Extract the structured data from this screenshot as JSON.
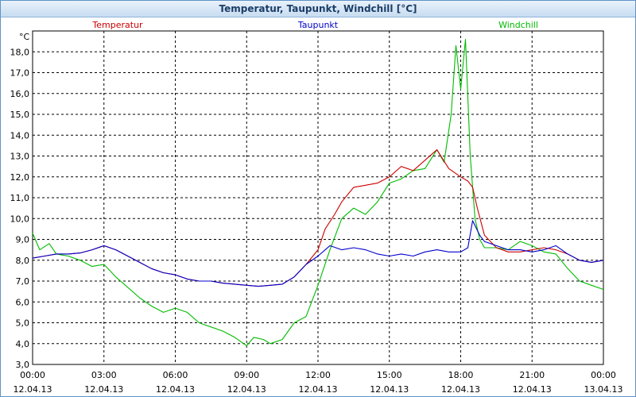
{
  "window": {
    "title": "Temperatur, Taupunkt, Windchill [°C]"
  },
  "chart_data": {
    "type": "line",
    "title": "Temperatur, Taupunkt, Windchill [°C]",
    "ylabel": "°C",
    "ylim": [
      3.0,
      19.0
    ],
    "y_ticks": [
      "3,0",
      "4,0",
      "5,0",
      "6,0",
      "7,0",
      "8,0",
      "9,0",
      "10,0",
      "11,0",
      "12,0",
      "13,0",
      "14,0",
      "15,0",
      "16,0",
      "17,0",
      "18,0"
    ],
    "x_ticks": [
      {
        "time": "00:00",
        "date": "12.04.13"
      },
      {
        "time": "03:00",
        "date": "12.04.13"
      },
      {
        "time": "06:00",
        "date": "12.04.13"
      },
      {
        "time": "09:00",
        "date": "12.04.13"
      },
      {
        "time": "12:00",
        "date": "12.04.13"
      },
      {
        "time": "15:00",
        "date": "12.04.13"
      },
      {
        "time": "18:00",
        "date": "12.04.13"
      },
      {
        "time": "21:00",
        "date": "12.04.13"
      },
      {
        "time": "00:00",
        "date": "13.04.13"
      }
    ],
    "xlim_hours": [
      0,
      24
    ],
    "grid": true,
    "legend_position": "top",
    "series": [
      {
        "name": "Temperatur",
        "color": "#cc0000",
        "x": [
          0,
          0.5,
          1,
          1.5,
          2,
          2.5,
          3,
          3.5,
          4,
          4.5,
          5,
          5.5,
          6,
          6.5,
          7,
          7.5,
          8,
          8.5,
          9,
          9.5,
          10,
          10.5,
          11,
          11.5,
          12,
          12.3,
          12.7,
          13,
          13.5,
          14,
          14.5,
          15,
          15.5,
          16,
          16.5,
          17,
          17.5,
          18,
          18.3,
          18.5,
          18.7,
          19,
          19.5,
          20,
          20.5,
          21,
          21.5,
          22,
          22.5,
          23,
          23.5,
          24
        ],
        "y": [
          8.1,
          8.2,
          8.3,
          8.3,
          8.35,
          8.5,
          8.7,
          8.5,
          8.2,
          7.9,
          7.6,
          7.4,
          7.3,
          7.1,
          7.0,
          7.0,
          6.9,
          6.85,
          6.8,
          6.75,
          6.8,
          6.85,
          7.2,
          7.8,
          8.5,
          9.5,
          10.2,
          10.8,
          11.5,
          11.6,
          11.7,
          12.0,
          12.5,
          12.3,
          12.8,
          13.3,
          12.4,
          12.0,
          11.8,
          11.5,
          10.5,
          9.2,
          8.6,
          8.4,
          8.4,
          8.5,
          8.6,
          8.5,
          8.3,
          8.0,
          7.9,
          8.0
        ]
      },
      {
        "name": "Taupunkt",
        "color": "#0000cc",
        "x": [
          0,
          0.5,
          1,
          1.5,
          2,
          2.5,
          3,
          3.5,
          4,
          4.5,
          5,
          5.5,
          6,
          6.5,
          7,
          7.5,
          8,
          8.5,
          9,
          9.5,
          10,
          10.5,
          11,
          11.5,
          12,
          12.5,
          13,
          13.5,
          14,
          14.5,
          15,
          15.5,
          16,
          16.5,
          17,
          17.5,
          18,
          18.3,
          18.5,
          18.8,
          19,
          19.5,
          20,
          20.5,
          21,
          21.5,
          22,
          22.5,
          23,
          23.5,
          24
        ],
        "y": [
          8.1,
          8.2,
          8.3,
          8.3,
          8.35,
          8.5,
          8.7,
          8.5,
          8.2,
          7.9,
          7.6,
          7.4,
          7.3,
          7.1,
          7.0,
          7.0,
          6.9,
          6.85,
          6.8,
          6.75,
          6.8,
          6.85,
          7.2,
          7.8,
          8.2,
          8.7,
          8.5,
          8.6,
          8.5,
          8.3,
          8.2,
          8.3,
          8.2,
          8.4,
          8.5,
          8.4,
          8.4,
          8.6,
          9.9,
          9.2,
          8.9,
          8.7,
          8.5,
          8.5,
          8.4,
          8.5,
          8.7,
          8.3,
          8.0,
          7.9,
          8.0
        ]
      },
      {
        "name": "Windchill",
        "color": "#00bb00",
        "x": [
          0,
          0.3,
          0.7,
          1,
          1.5,
          2,
          2.5,
          3,
          3.5,
          4,
          4.5,
          5,
          5.5,
          6,
          6.5,
          7,
          7.5,
          8,
          8.5,
          9,
          9.3,
          9.7,
          10,
          10.5,
          11,
          11.5,
          12,
          12.5,
          13,
          13.5,
          14,
          14.5,
          15,
          15.5,
          16,
          16.5,
          17,
          17.3,
          17.6,
          17.8,
          18,
          18.2,
          18.4,
          18.6,
          18.8,
          19,
          19.5,
          20,
          20.5,
          21,
          21.5,
          22,
          22.5,
          23,
          23.5,
          24
        ],
        "y": [
          9.3,
          8.5,
          8.8,
          8.3,
          8.2,
          8.0,
          7.7,
          7.8,
          7.2,
          6.7,
          6.2,
          5.8,
          5.5,
          5.7,
          5.5,
          5.0,
          4.8,
          4.6,
          4.3,
          3.9,
          4.3,
          4.2,
          4.0,
          4.2,
          5.0,
          5.3,
          6.8,
          8.5,
          10.0,
          10.5,
          10.2,
          10.8,
          11.7,
          11.9,
          12.3,
          12.4,
          13.3,
          12.7,
          15.0,
          18.3,
          16.2,
          18.6,
          13.0,
          10.0,
          9.0,
          8.6,
          8.6,
          8.5,
          8.9,
          8.7,
          8.4,
          8.3,
          7.6,
          7.0,
          6.8,
          6.6
        ]
      }
    ]
  }
}
